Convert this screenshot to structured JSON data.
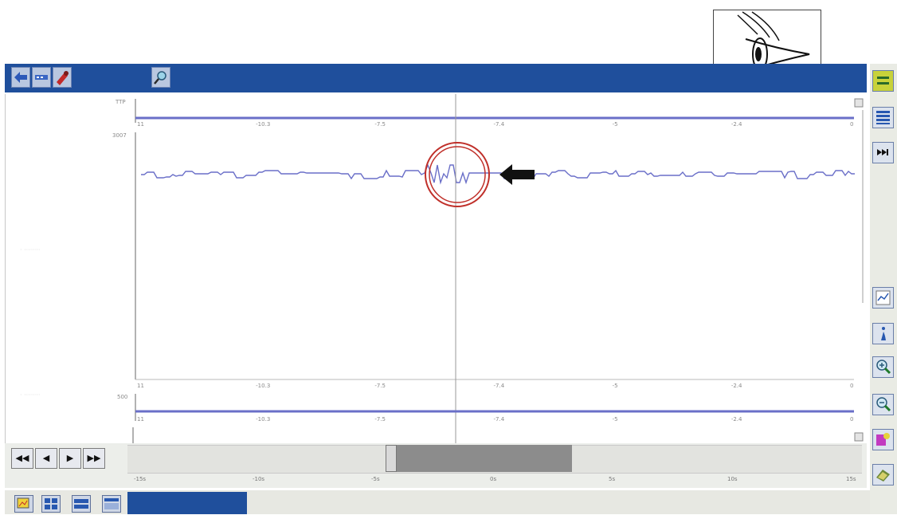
{
  "toolbar": {
    "buttons": [
      "back-arrow-icon",
      "status-icon",
      "tool-icon"
    ],
    "right_icon": "magnifier-icon"
  },
  "eye_panel": {
    "icon": "eye-icon"
  },
  "right_toolbar": {
    "buttons": [
      "expand-icon",
      "list-icon",
      "skip-end-icon",
      "chart-icon",
      "info-icon",
      "zoom-in-icon",
      "zoom-out-icon",
      "color-icon",
      "print-icon"
    ]
  },
  "graph": {
    "top_channel_ylabel": "TTP",
    "main_channel_ylabel": "3007",
    "bottom_channel_ylabel": "500",
    "x_ticks": [
      "11",
      "-10.3",
      "-7.5",
      "-7.4",
      "-5",
      "-2.4",
      "0"
    ],
    "bottom_x_ticks": [
      "11",
      "-10.3",
      "-7.5",
      "-7.4",
      "-5",
      "-2.4",
      "0"
    ]
  },
  "navigation": {
    "first_label": "◀◀",
    "prev_label": "◀",
    "next_label": "▶",
    "last_label": "▶▶"
  },
  "timeline": {
    "labels": [
      "-15s",
      "-10s",
      "-5s",
      "0s",
      "5s",
      "10s",
      "15s"
    ],
    "thumb_position": 0.36
  },
  "bottom_bar": {
    "buttons": [
      "graph-view-icon",
      "grid-view-icon",
      "list-view-icon",
      "table-view-icon"
    ]
  },
  "colors": {
    "bar_blue": "#1f4f9c",
    "trace": "#6a6fc8",
    "highlight_circle": "#c0302a"
  }
}
